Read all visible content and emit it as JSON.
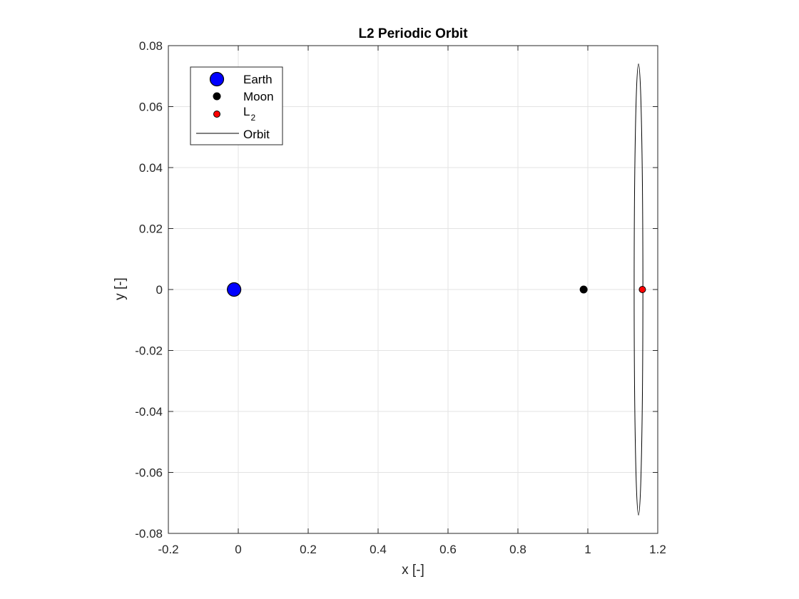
{
  "chart_data": {
    "type": "scatter",
    "title": "L2 Periodic Orbit",
    "xlabel": "x [-]",
    "ylabel": "y [-]",
    "xlim": [
      -0.2,
      1.2
    ],
    "ylim": [
      -0.08,
      0.08
    ],
    "xticks": [
      -0.2,
      0,
      0.2,
      0.4,
      0.6,
      0.8,
      1,
      1.2
    ],
    "xtick_labels": [
      "-0.2",
      "0",
      "0.2",
      "0.4",
      "0.6",
      "0.8",
      "1",
      "1.2"
    ],
    "yticks": [
      -0.08,
      -0.06,
      -0.04,
      -0.02,
      0,
      0.02,
      0.04,
      0.06,
      0.08
    ],
    "ytick_labels": [
      "-0.08",
      "-0.06",
      "-0.04",
      "-0.02",
      "0",
      "0.02",
      "0.04",
      "0.06",
      "0.08"
    ],
    "grid": true,
    "legend_position": "top-left",
    "series": [
      {
        "name": "Earth",
        "kind": "marker",
        "x": [
          -0.012
        ],
        "y": [
          0
        ],
        "color": "#0000ff",
        "edge": "#000000"
      },
      {
        "name": "Moon",
        "kind": "marker",
        "x": [
          0.988
        ],
        "y": [
          0
        ],
        "color": "#000000",
        "edge": "#000000"
      },
      {
        "name": "L",
        "name_subscript": "2",
        "kind": "marker",
        "x": [
          1.156
        ],
        "y": [
          0
        ],
        "color": "#ff0000",
        "edge": "#000000"
      },
      {
        "name": "Orbit",
        "kind": "line",
        "color": "#000000",
        "center_x": 1.145,
        "center_y": 0,
        "half_width_x": 0.0125,
        "half_height_y": 0.074
      }
    ]
  }
}
